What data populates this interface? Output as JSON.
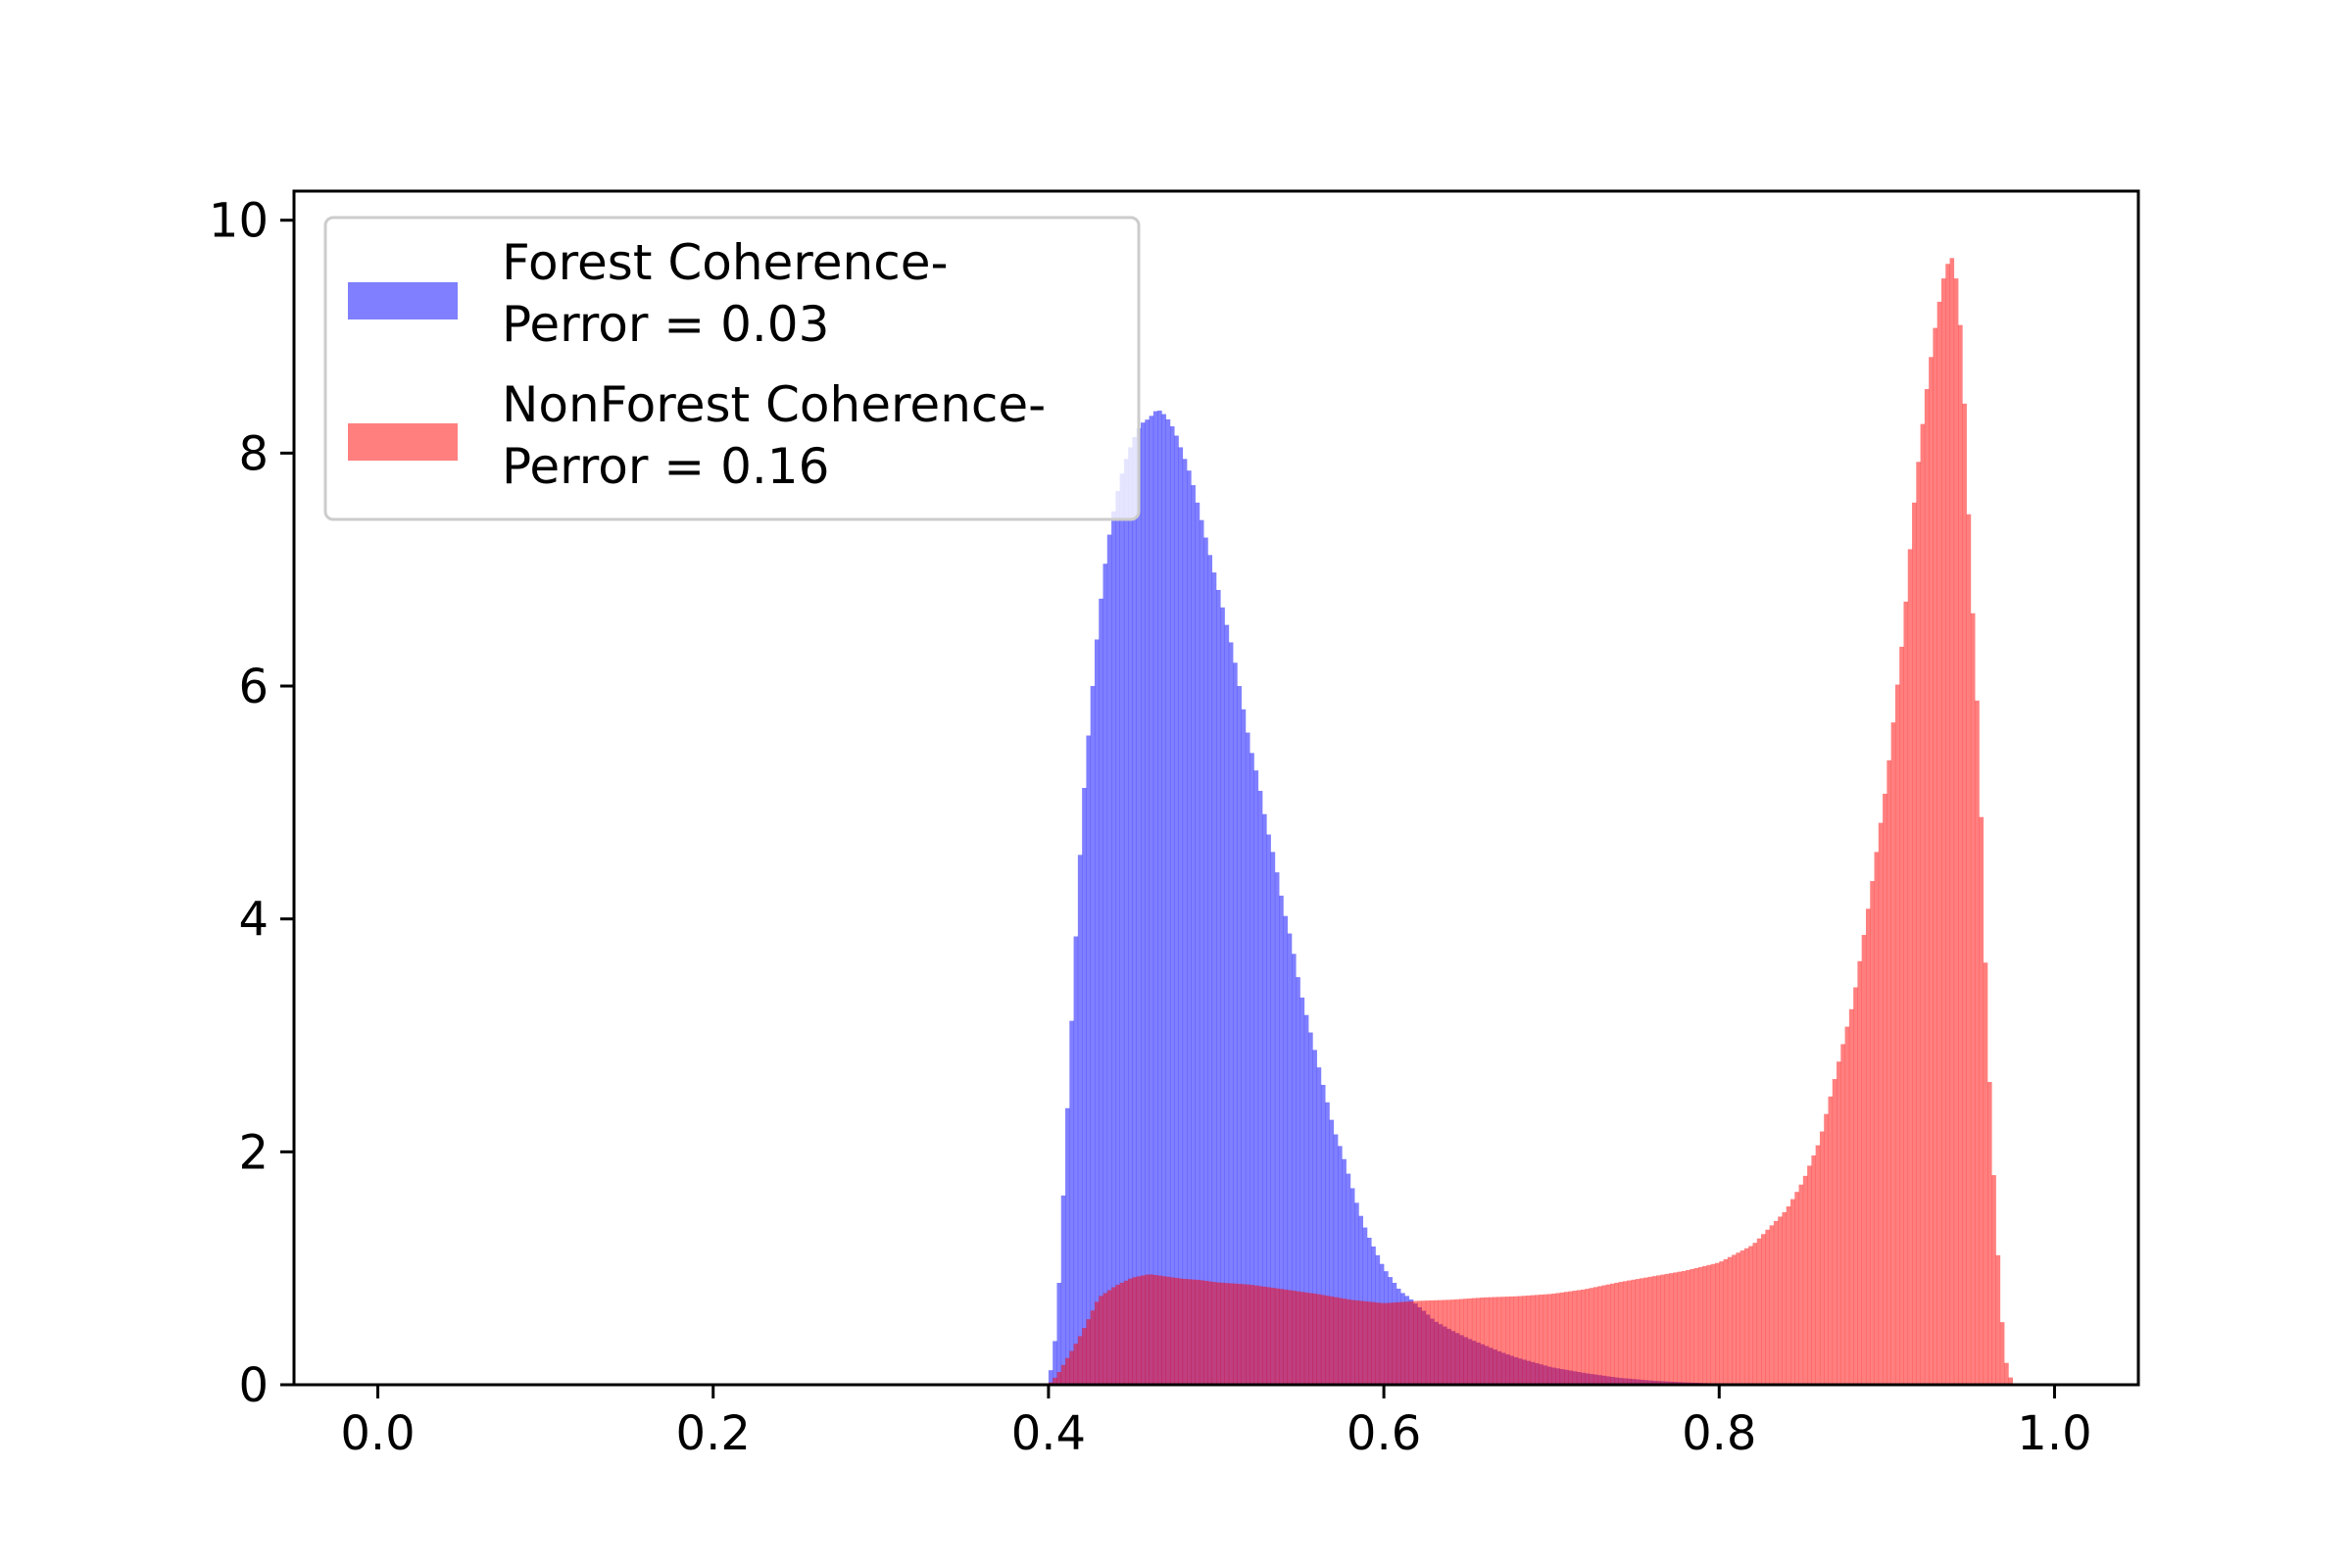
{
  "chart_data": {
    "type": "histogram",
    "title": "",
    "xlabel": "",
    "ylabel": "",
    "xlim": [
      -0.05,
      1.05
    ],
    "ylim": [
      0,
      10.25
    ],
    "xticks": [
      0.0,
      0.2,
      0.4,
      0.6,
      0.8,
      1.0
    ],
    "xtick_labels": [
      "0.0",
      "0.2",
      "0.4",
      "0.6",
      "0.8",
      "1.0"
    ],
    "yticks": [
      0,
      2,
      4,
      6,
      8,
      10
    ],
    "ytick_labels": [
      "0",
      "2",
      "4",
      "6",
      "8",
      "10"
    ],
    "grid": false,
    "legend_position": "upper-left",
    "series": [
      {
        "name": "Forest Coherence-\nPerror = 0.03",
        "legend_line1": "Forest Coherence-",
        "legend_line2": "Perror = 0.03",
        "color": "#0000ff",
        "alpha": 0.5,
        "points": [
          [
            0.4,
            0.0
          ],
          [
            0.405,
            0.5
          ],
          [
            0.41,
            2.0
          ],
          [
            0.415,
            3.5
          ],
          [
            0.42,
            4.9
          ],
          [
            0.425,
            5.8
          ],
          [
            0.43,
            6.6
          ],
          [
            0.435,
            7.2
          ],
          [
            0.44,
            7.6
          ],
          [
            0.445,
            7.9
          ],
          [
            0.45,
            8.1
          ],
          [
            0.455,
            8.25
          ],
          [
            0.46,
            8.3
          ],
          [
            0.465,
            8.38
          ],
          [
            0.47,
            8.32
          ],
          [
            0.475,
            8.2
          ],
          [
            0.48,
            8.0
          ],
          [
            0.485,
            7.8
          ],
          [
            0.49,
            7.5
          ],
          [
            0.495,
            7.2
          ],
          [
            0.5,
            6.9
          ],
          [
            0.505,
            6.6
          ],
          [
            0.51,
            6.3
          ],
          [
            0.515,
            5.9
          ],
          [
            0.52,
            5.5
          ],
          [
            0.525,
            5.2
          ],
          [
            0.53,
            4.8
          ],
          [
            0.535,
            4.5
          ],
          [
            0.54,
            4.1
          ],
          [
            0.545,
            3.8
          ],
          [
            0.55,
            3.4
          ],
          [
            0.555,
            3.1
          ],
          [
            0.56,
            2.8
          ],
          [
            0.565,
            2.5
          ],
          [
            0.57,
            2.2
          ],
          [
            0.575,
            2.0
          ],
          [
            0.58,
            1.75
          ],
          [
            0.585,
            1.5
          ],
          [
            0.59,
            1.3
          ],
          [
            0.595,
            1.15
          ],
          [
            0.6,
            1.0
          ],
          [
            0.605,
            0.9
          ],
          [
            0.61,
            0.8
          ],
          [
            0.615,
            0.75
          ],
          [
            0.62,
            0.68
          ],
          [
            0.625,
            0.62
          ],
          [
            0.63,
            0.55
          ],
          [
            0.64,
            0.47
          ],
          [
            0.65,
            0.4
          ],
          [
            0.66,
            0.34
          ],
          [
            0.67,
            0.28
          ],
          [
            0.68,
            0.23
          ],
          [
            0.69,
            0.19
          ],
          [
            0.7,
            0.15
          ],
          [
            0.72,
            0.1
          ],
          [
            0.74,
            0.06
          ],
          [
            0.76,
            0.035
          ],
          [
            0.78,
            0.02
          ],
          [
            0.8,
            0.01
          ],
          [
            0.82,
            0.0
          ]
        ]
      },
      {
        "name": "NonForest Coherence-\nPerror = 0.16",
        "legend_line1": "NonForest Coherence-",
        "legend_line2": "Perror = 0.16",
        "color": "#ff0000",
        "alpha": 0.5,
        "points": [
          [
            0.4,
            0.0
          ],
          [
            0.405,
            0.08
          ],
          [
            0.41,
            0.2
          ],
          [
            0.415,
            0.32
          ],
          [
            0.42,
            0.45
          ],
          [
            0.425,
            0.6
          ],
          [
            0.43,
            0.75
          ],
          [
            0.44,
            0.85
          ],
          [
            0.45,
            0.92
          ],
          [
            0.46,
            0.95
          ],
          [
            0.47,
            0.93
          ],
          [
            0.48,
            0.91
          ],
          [
            0.49,
            0.9
          ],
          [
            0.5,
            0.88
          ],
          [
            0.52,
            0.86
          ],
          [
            0.54,
            0.82
          ],
          [
            0.56,
            0.78
          ],
          [
            0.58,
            0.73
          ],
          [
            0.6,
            0.7
          ],
          [
            0.62,
            0.72
          ],
          [
            0.64,
            0.73
          ],
          [
            0.66,
            0.75
          ],
          [
            0.68,
            0.76
          ],
          [
            0.7,
            0.78
          ],
          [
            0.72,
            0.82
          ],
          [
            0.74,
            0.88
          ],
          [
            0.76,
            0.93
          ],
          [
            0.78,
            0.98
          ],
          [
            0.8,
            1.05
          ],
          [
            0.82,
            1.2
          ],
          [
            0.84,
            1.5
          ],
          [
            0.85,
            1.75
          ],
          [
            0.86,
            2.1
          ],
          [
            0.87,
            2.7
          ],
          [
            0.88,
            3.3
          ],
          [
            0.89,
            4.2
          ],
          [
            0.9,
            5.2
          ],
          [
            0.91,
            6.5
          ],
          [
            0.915,
            7.4
          ],
          [
            0.92,
            8.1
          ],
          [
            0.925,
            8.7
          ],
          [
            0.93,
            9.2
          ],
          [
            0.935,
            9.6
          ],
          [
            0.94,
            9.7
          ],
          [
            0.945,
            8.9
          ],
          [
            0.95,
            7.0
          ],
          [
            0.955,
            5.5
          ],
          [
            0.96,
            3.0
          ],
          [
            0.965,
            1.4
          ],
          [
            0.97,
            0.25
          ],
          [
            0.975,
            0.0
          ]
        ]
      }
    ]
  }
}
